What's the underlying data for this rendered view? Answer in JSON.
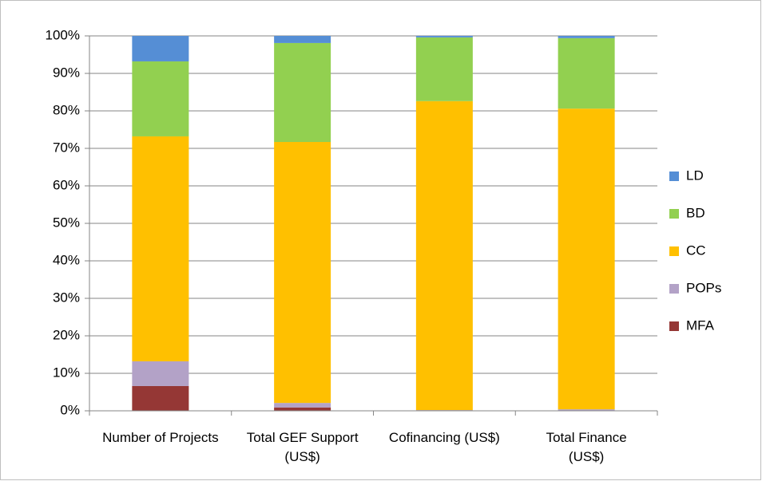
{
  "chart_data": {
    "type": "stacked_bar",
    "categories": [
      "Number of Projects",
      "Total GEF Support (US$)",
      "Cofinancing (US$)",
      "Total Finance (US$)"
    ],
    "series": [
      {
        "name": "MFA",
        "color": "#953735",
        "values": [
          6.6,
          0.9,
          0.1,
          0.1
        ]
      },
      {
        "name": "POPs",
        "color": "#b3a2c7",
        "values": [
          6.6,
          1.2,
          0.1,
          0.3
        ]
      },
      {
        "name": "CC",
        "color": "#ffc000",
        "values": [
          60.0,
          69.6,
          82.4,
          80.2
        ]
      },
      {
        "name": "BD",
        "color": "#92d050",
        "values": [
          20.0,
          26.4,
          17.0,
          18.8
        ]
      },
      {
        "name": "LD",
        "color": "#558ed5",
        "values": [
          6.8,
          1.9,
          0.4,
          0.6
        ]
      }
    ],
    "ylim": [
      0,
      100
    ],
    "yticks": [
      {
        "value": 0,
        "label": "0%"
      },
      {
        "value": 10,
        "label": "10%"
      },
      {
        "value": 20,
        "label": "20%"
      },
      {
        "value": 30,
        "label": "30%"
      },
      {
        "value": 40,
        "label": "40%"
      },
      {
        "value": 50,
        "label": "50%"
      },
      {
        "value": 60,
        "label": "60%"
      },
      {
        "value": 70,
        "label": "70%"
      },
      {
        "value": 80,
        "label": "80%"
      },
      {
        "value": 90,
        "label": "90%"
      },
      {
        "value": 100,
        "label": "100%"
      }
    ],
    "grid": true,
    "legend": "right"
  }
}
